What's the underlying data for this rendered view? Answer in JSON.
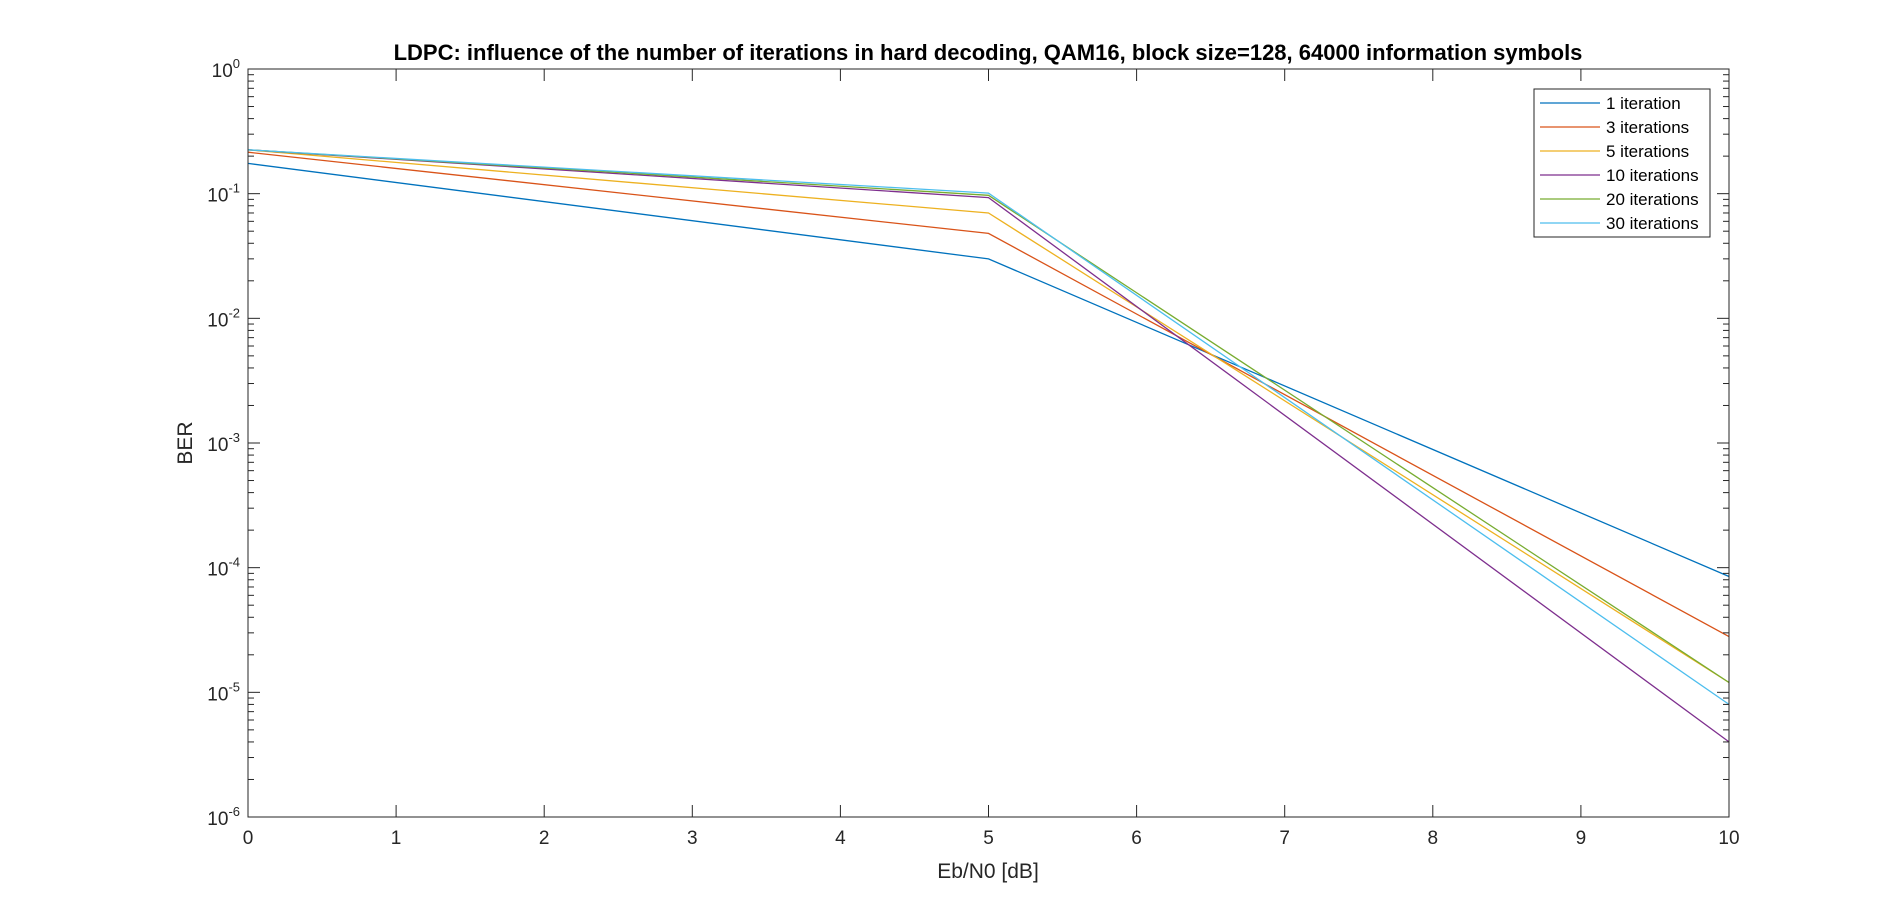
{
  "chart_data": {
    "type": "line",
    "title": "LDPC: influence of the number of iterations in hard decoding, QAM16, block size=128, 64000 information symbols",
    "xlabel": "Eb/N0 [dB]",
    "ylabel": "BER",
    "xlim": [
      0,
      10
    ],
    "ylim": [
      1e-06,
      1
    ],
    "yscale": "log",
    "x_ticks": [
      "0",
      "1",
      "2",
      "3",
      "4",
      "5",
      "6",
      "7",
      "8",
      "9",
      "10"
    ],
    "y_ticks": [
      {
        "base": "10",
        "exp": "0"
      },
      {
        "base": "10",
        "exp": "-1"
      },
      {
        "base": "10",
        "exp": "-2"
      },
      {
        "base": "10",
        "exp": "-3"
      },
      {
        "base": "10",
        "exp": "-4"
      },
      {
        "base": "10",
        "exp": "-5"
      },
      {
        "base": "10",
        "exp": "-6"
      }
    ],
    "grid": false,
    "legend_position": "top-right",
    "x": [
      0,
      5,
      10
    ],
    "series": [
      {
        "name": "1 iteration",
        "color": "#0072BD",
        "values": [
          0.175,
          0.03,
          8.5e-05
        ]
      },
      {
        "name": "3 iterations",
        "color": "#D95319",
        "values": [
          0.215,
          0.048,
          2.8e-05
        ]
      },
      {
        "name": "5 iterations",
        "color": "#EDB120",
        "values": [
          0.225,
          0.07,
          1.2e-05
        ]
      },
      {
        "name": "10 iterations",
        "color": "#7E2F8E",
        "values": [
          0.225,
          0.093,
          4e-06
        ]
      },
      {
        "name": "20 iterations",
        "color": "#77AC30",
        "values": [
          0.225,
          0.097,
          1.2e-05
        ]
      },
      {
        "name": "30 iterations",
        "color": "#4DBEEE",
        "values": [
          0.225,
          0.101,
          8e-06
        ]
      }
    ]
  }
}
